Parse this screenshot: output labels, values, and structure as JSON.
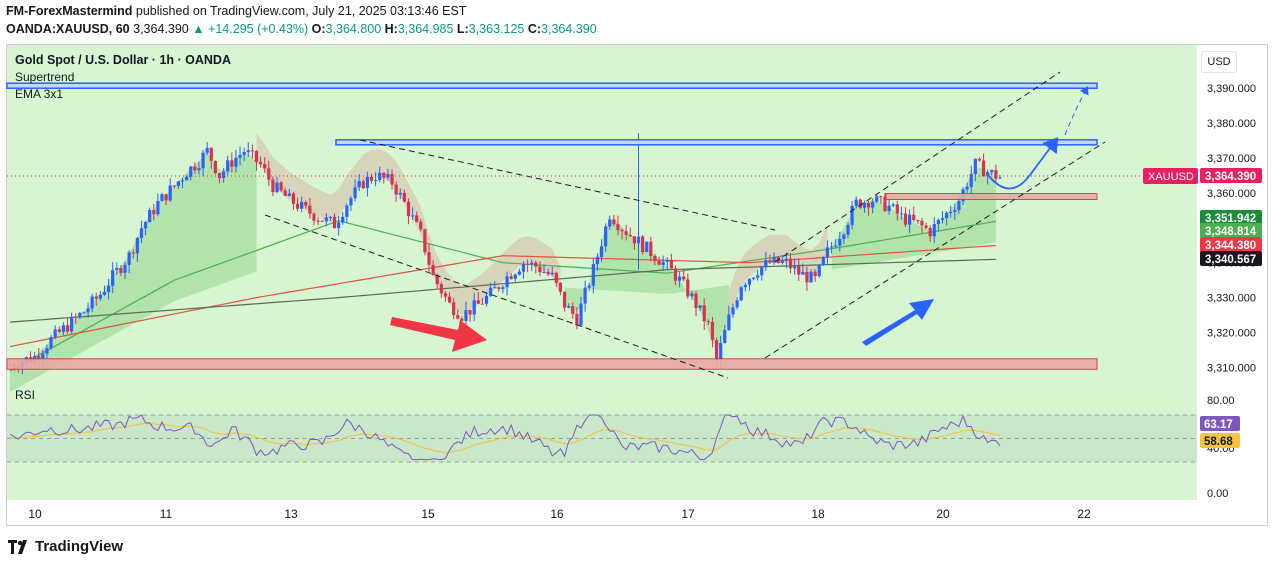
{
  "header": {
    "author": "FM-ForexMastermind",
    "published": "published on TradingView.com, July 21, 2025 03:13:46 EST",
    "symbol": "OANDA:XAUUSD, 60",
    "last": "3,364.390",
    "change": "+14.295 (+0.43%)",
    "o_label": "O:",
    "o": "3,364.800",
    "h_label": "H:",
    "h": "3,364.985",
    "l_label": "L:",
    "l": "3,363.125",
    "c_label": "C:",
    "c": "3,364.390"
  },
  "legend": {
    "title": "Gold Spot / U.S. Dollar · 1h · OANDA",
    "ind1": "Supertrend",
    "ind2": "EMA 3x1",
    "rsi": "RSI"
  },
  "currency": "USD",
  "brand": "TradingView",
  "colors": {
    "bg": "#d7f5d1",
    "up": "#2962ff",
    "down": "#d6334c",
    "zone_fill": "#e8a8a3",
    "zone_stroke": "#d6334c",
    "blue_line": "#2962ff",
    "rsi_line": "#7e57c2",
    "rsi_ma": "#f5c242"
  },
  "chart_data": {
    "type": "candlestick",
    "title": "Gold Spot / U.S. Dollar · 1h · OANDA",
    "ylim": [
      3305,
      3398
    ],
    "y_ticks": [
      "3,390.000",
      "3,380.000",
      "3,370.000",
      "3,360.000",
      "3,350.000",
      "3,340.000",
      "3,330.000",
      "3,320.000",
      "3,310.000"
    ],
    "y_tick_values": [
      3390,
      3380,
      3370,
      3360,
      3350,
      3340,
      3330,
      3320,
      3310
    ],
    "x_ticks": [
      "10",
      "11",
      "13",
      "15",
      "16",
      "17",
      "18",
      "20",
      "22"
    ],
    "price_tags": [
      {
        "name": "XAUUSD",
        "text": "3,364.390",
        "value": 3364.39,
        "color": "#e91e63"
      },
      {
        "text": "3,351.942",
        "value": 3351.942,
        "color": "#1b8c3b"
      },
      {
        "text": "3,348.814",
        "value": 3348.814,
        "color": "#4caf50"
      },
      {
        "text": "3,344.380",
        "value": 3344.38,
        "color": "#f23645"
      },
      {
        "text": "3,340.567",
        "value": 3340.567,
        "color": "#131722"
      }
    ],
    "horizontal_levels": [
      {
        "name": "resistance-upper",
        "value": 3390.5
      },
      {
        "name": "resistance",
        "value": 3374.3
      }
    ],
    "zones": [
      {
        "name": "support-zone",
        "low": 3309.5,
        "high": 3312.5
      },
      {
        "name": "breakout-zone",
        "low": 3358.3,
        "high": 3359.8
      }
    ],
    "rsi": {
      "ticks": [
        "80.00",
        "40.00",
        "0.00"
      ],
      "tick_values": [
        80,
        40,
        0
      ],
      "band": [
        30,
        70
      ],
      "ylim": [
        0,
        100
      ],
      "value": "63.17",
      "ma": "58.68"
    },
    "series": [
      {
        "name": "price",
        "points": [
          [
            0,
            3311
          ],
          [
            6,
            3313
          ],
          [
            10,
            3318
          ],
          [
            14,
            3322
          ],
          [
            18,
            3326
          ],
          [
            22,
            3331
          ],
          [
            25,
            3336
          ],
          [
            29,
            3342
          ],
          [
            32,
            3350
          ],
          [
            36,
            3357
          ],
          [
            40,
            3362
          ],
          [
            43,
            3366
          ],
          [
            46,
            3369
          ],
          [
            48,
            3372
          ],
          [
            51,
            3365
          ],
          [
            54,
            3369
          ],
          [
            57,
            3372
          ],
          [
            61,
            3368
          ],
          [
            64,
            3362
          ],
          [
            68,
            3358
          ],
          [
            72,
            3355
          ],
          [
            75,
            3353
          ],
          [
            79,
            3351
          ],
          [
            82,
            3357
          ],
          [
            86,
            3363
          ],
          [
            89,
            3365
          ],
          [
            93,
            3363
          ],
          [
            96,
            3357
          ],
          [
            100,
            3348
          ],
          [
            103,
            3336
          ],
          [
            107,
            3328
          ],
          [
            110,
            3325
          ],
          [
            114,
            3328
          ],
          [
            117,
            3331
          ],
          [
            121,
            3336
          ],
          [
            125,
            3340
          ],
          [
            128,
            3339
          ],
          [
            132,
            3336
          ],
          [
            135,
            3328
          ],
          [
            138,
            3324
          ],
          [
            142,
            3338
          ],
          [
            146,
            3354
          ],
          [
            149,
            3350
          ],
          [
            153,
            3346
          ],
          [
            157,
            3342
          ],
          [
            160,
            3339
          ],
          [
            163,
            3335
          ],
          [
            166,
            3330
          ],
          [
            170,
            3322
          ],
          [
            172,
            3312
          ],
          [
            175,
            3324
          ],
          [
            178,
            3334
          ],
          [
            182,
            3338
          ],
          [
            185,
            3340
          ],
          [
            189,
            3340
          ],
          [
            192,
            3337
          ],
          [
            196,
            3335
          ],
          [
            199,
            3343
          ],
          [
            203,
            3350
          ],
          [
            206,
            3357
          ],
          [
            210,
            3358
          ],
          [
            214,
            3356
          ],
          [
            217,
            3353
          ],
          [
            221,
            3351
          ],
          [
            224,
            3349
          ],
          [
            228,
            3354
          ],
          [
            231,
            3358
          ],
          [
            235,
            3368
          ],
          [
            238,
            3366
          ],
          [
            241,
            3364.39
          ]
        ]
      },
      {
        "name": "ema-green",
        "points": [
          [
            0,
            3309
          ],
          [
            40,
            3335
          ],
          [
            80,
            3352
          ],
          [
            120,
            3340
          ],
          [
            160,
            3337
          ],
          [
            200,
            3344
          ],
          [
            241,
            3352
          ]
        ]
      },
      {
        "name": "ema-red",
        "points": [
          [
            0,
            3316
          ],
          [
            60,
            3330
          ],
          [
            120,
            3342
          ],
          [
            180,
            3340
          ],
          [
            241,
            3345
          ]
        ]
      },
      {
        "name": "ema-dark",
        "points": [
          [
            0,
            3323
          ],
          [
            80,
            3330
          ],
          [
            160,
            3338
          ],
          [
            241,
            3341
          ]
        ]
      }
    ]
  }
}
